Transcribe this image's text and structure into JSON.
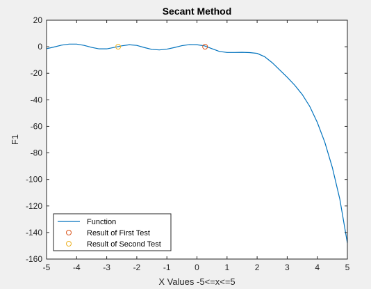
{
  "chart_data": {
    "type": "line",
    "title": "Secant Method",
    "xlabel": "X Values -5<=x<=5",
    "ylabel": "F1",
    "xlim": [
      -5,
      5
    ],
    "ylim": [
      -160,
      20
    ],
    "xticks": [
      "-5",
      "-4",
      "-3",
      "-2",
      "-1",
      "0",
      "1",
      "2",
      "3",
      "4",
      "5"
    ],
    "yticks": [
      "20",
      "0",
      "-20",
      "-40",
      "-60",
      "-80",
      "-100",
      "-120",
      "-140",
      "-160"
    ],
    "grid": false,
    "legend_position": "bottom-left",
    "series": [
      {
        "name": "Function",
        "kind": "line",
        "color": "#0072BD",
        "x": [
          -5,
          -4.75,
          -4.5,
          -4.25,
          -4,
          -3.75,
          -3.5,
          -3.25,
          -3,
          -2.75,
          -2.5,
          -2.25,
          -2,
          -1.75,
          -1.5,
          -1.25,
          -1,
          -0.75,
          -0.5,
          -0.25,
          0,
          0.25,
          0.5,
          0.75,
          1,
          1.25,
          1.5,
          1.75,
          2,
          2.25,
          2.5,
          2.75,
          3,
          3.25,
          3.5,
          3.75,
          4,
          4.25,
          4.5,
          4.75,
          5
        ],
        "y": [
          -1.5,
          -0.2,
          1.2,
          2.0,
          2.0,
          1.0,
          -0.5,
          -1.6,
          -1.6,
          -0.5,
          0.7,
          1.5,
          1.0,
          -0.6,
          -2.0,
          -2.4,
          -1.8,
          -0.6,
          0.8,
          1.6,
          1.5,
          0.7,
          -1.5,
          -3.6,
          -4.3,
          -4.3,
          -4.2,
          -4.4,
          -5.0,
          -7.5,
          -12.0,
          -17.5,
          -23.0,
          -29.0,
          -36.0,
          -45.0,
          -57.0,
          -72.0,
          -91.0,
          -115.0,
          -148.0
        ]
      },
      {
        "name": "Result of First Test",
        "kind": "marker",
        "color": "#D95319",
        "x": [
          0.27
        ],
        "y": [
          0
        ]
      },
      {
        "name": "Result of Second Test",
        "kind": "marker",
        "color": "#EDB120",
        "x": [
          -2.62
        ],
        "y": [
          0
        ]
      }
    ]
  }
}
